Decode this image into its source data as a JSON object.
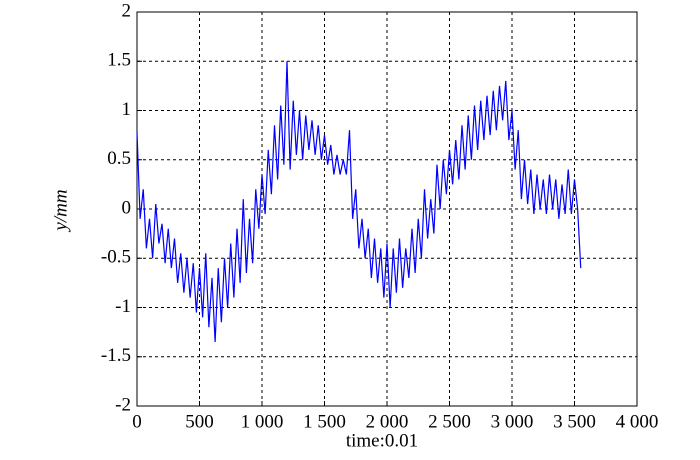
{
  "chart_data": {
    "type": "line",
    "xlabel": "time:0.01",
    "ylabel": "y/mm",
    "xlim": [
      0,
      4000
    ],
    "ylim": [
      -2,
      2
    ],
    "xticks": [
      0,
      500,
      {
        "value": 1000,
        "label": "1 000"
      },
      {
        "value": 1500,
        "label": "1 500"
      },
      {
        "value": 2000,
        "label": "2 000"
      },
      {
        "value": 2500,
        "label": "2 500"
      },
      {
        "value": 3000,
        "label": "3 000"
      },
      {
        "value": 3500,
        "label": "3 500"
      },
      {
        "value": 4000,
        "label": "4 000"
      }
    ],
    "yticks": [
      2,
      1.5,
      1,
      0.5,
      0,
      -0.5,
      -1,
      -1.5,
      -2
    ],
    "grid": true,
    "series": [
      {
        "color": "#0000ff",
        "x": [
          0,
          25,
          50,
          75,
          100,
          125,
          150,
          175,
          200,
          225,
          250,
          275,
          300,
          325,
          350,
          375,
          400,
          425,
          450,
          475,
          500,
          525,
          550,
          575,
          600,
          625,
          650,
          675,
          700,
          725,
          750,
          775,
          800,
          825,
          850,
          875,
          900,
          925,
          950,
          975,
          1000,
          1025,
          1050,
          1075,
          1100,
          1125,
          1150,
          1175,
          1200,
          1225,
          1250,
          1275,
          1300,
          1325,
          1350,
          1375,
          1400,
          1425,
          1450,
          1475,
          1500,
          1525,
          1550,
          1575,
          1600,
          1625,
          1650,
          1675,
          1700,
          1725,
          1750,
          1775,
          1800,
          1825,
          1850,
          1875,
          1900,
          1925,
          1950,
          1975,
          2000,
          2025,
          2050,
          2075,
          2100,
          2125,
          2150,
          2175,
          2200,
          2225,
          2250,
          2275,
          2300,
          2325,
          2350,
          2375,
          2400,
          2425,
          2450,
          2475,
          2500,
          2525,
          2550,
          2575,
          2600,
          2625,
          2650,
          2675,
          2700,
          2725,
          2750,
          2775,
          2800,
          2825,
          2850,
          2875,
          2900,
          2925,
          2950,
          2975,
          3000,
          3025,
          3050,
          3075,
          3100,
          3125,
          3150,
          3175,
          3200,
          3225,
          3250,
          3275,
          3300,
          3325,
          3350,
          3375,
          3400,
          3425,
          3450,
          3475,
          3500,
          3525,
          3550
        ],
        "values": [
          0.78,
          -0.1,
          0.2,
          -0.4,
          -0.1,
          -0.5,
          0.05,
          -0.35,
          -0.15,
          -0.55,
          -0.2,
          -0.6,
          -0.3,
          -0.75,
          -0.45,
          -0.85,
          -0.5,
          -0.9,
          -0.55,
          -1.05,
          -0.6,
          -1.1,
          -0.45,
          -1.2,
          -0.7,
          -1.35,
          -0.6,
          -1.15,
          -0.5,
          -1.0,
          -0.35,
          -0.9,
          -0.2,
          -0.75,
          0.1,
          -0.65,
          -0.1,
          -0.55,
          0.2,
          -0.2,
          0.35,
          -0.05,
          0.6,
          0.15,
          0.85,
          0.3,
          1.05,
          0.45,
          1.5,
          0.4,
          1.1,
          0.55,
          1.0,
          0.5,
          0.95,
          0.6,
          0.9,
          0.55,
          0.85,
          0.5,
          0.75,
          0.45,
          0.65,
          0.35,
          0.55,
          0.35,
          0.5,
          0.35,
          0.8,
          -0.1,
          0.2,
          -0.4,
          -0.1,
          -0.5,
          -0.2,
          -0.7,
          -0.3,
          -0.75,
          -0.4,
          -0.9,
          -0.35,
          -1.0,
          -0.4,
          -0.85,
          -0.3,
          -0.8,
          -0.4,
          -0.7,
          -0.2,
          -0.65,
          -0.1,
          -0.5,
          0.2,
          -0.3,
          0.1,
          -0.25,
          0.45,
          0.0,
          0.5,
          0.15,
          0.6,
          0.25,
          0.7,
          0.3,
          0.85,
          0.4,
          0.95,
          0.5,
          1.05,
          0.6,
          1.1,
          0.7,
          1.15,
          0.75,
          1.2,
          0.8,
          1.25,
          0.9,
          1.3,
          0.7,
          1.0,
          0.4,
          0.8,
          0.1,
          0.5,
          0.05,
          0.4,
          -0.05,
          0.35,
          0.0,
          0.3,
          -0.05,
          0.35,
          0.0,
          0.3,
          -0.1,
          0.25,
          -0.05,
          0.4,
          -0.05,
          0.3,
          0.0,
          -0.6
        ]
      }
    ]
  }
}
